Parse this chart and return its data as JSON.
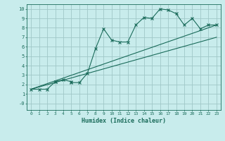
{
  "xlabel": "Humidex (Indice chaleur)",
  "ylabel": "",
  "bg_color": "#c8ecec",
  "grid_color": "#a0c8c8",
  "line_color": "#1a6b5a",
  "xlim": [
    -0.5,
    23.5
  ],
  "ylim": [
    -0.7,
    10.5
  ],
  "xticks": [
    0,
    1,
    2,
    3,
    4,
    5,
    6,
    7,
    8,
    9,
    10,
    11,
    12,
    13,
    14,
    15,
    16,
    17,
    18,
    19,
    20,
    21,
    22,
    23
  ],
  "yticks": [
    0,
    1,
    2,
    3,
    4,
    5,
    6,
    7,
    8,
    9,
    10
  ],
  "line1_x": [
    0,
    1,
    2,
    3,
    3,
    4,
    5,
    5,
    6,
    7,
    8,
    9,
    10,
    11,
    12,
    13,
    14,
    15,
    16,
    17,
    18,
    19,
    20,
    21,
    22,
    23
  ],
  "line1_y": [
    1.5,
    1.5,
    1.5,
    2.3,
    2.3,
    2.5,
    2.3,
    2.2,
    2.2,
    3.2,
    5.8,
    7.9,
    6.7,
    6.5,
    6.5,
    8.3,
    9.1,
    9.0,
    10.0,
    9.9,
    9.5,
    8.3,
    9.0,
    7.9,
    8.3,
    8.3
  ],
  "line2_x": [
    0,
    23
  ],
  "line2_y": [
    1.5,
    8.3
  ],
  "line3_x": [
    0,
    23
  ],
  "line3_y": [
    1.5,
    7.0
  ]
}
